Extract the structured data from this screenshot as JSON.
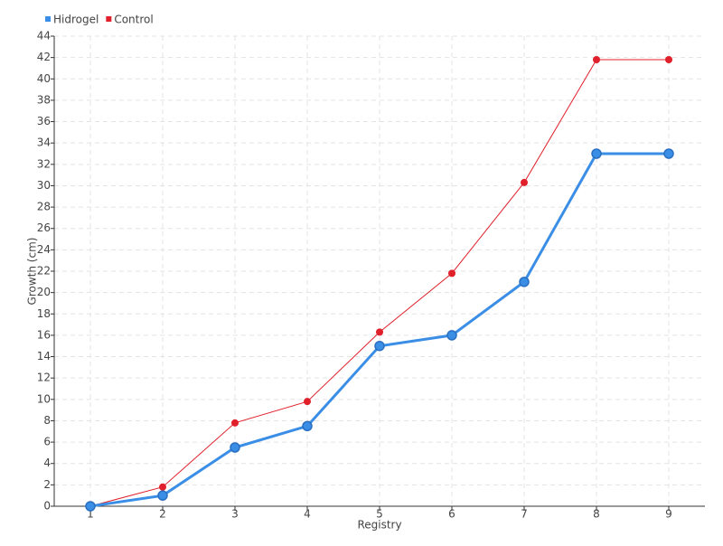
{
  "chart_data": {
    "type": "line",
    "x_label": "Registry",
    "y_label": "Growth (cm)",
    "categories": [
      "1",
      "2",
      "3",
      "4",
      "5",
      "6",
      "7",
      "8",
      "9"
    ],
    "series": [
      {
        "name": "Hidrogel",
        "color": "#3a8ee6",
        "values": [
          0,
          1,
          5.5,
          7.5,
          15,
          16,
          21,
          33,
          33
        ]
      },
      {
        "name": "Control",
        "color": "#e0202a",
        "values": [
          0,
          1.8,
          7.8,
          9.8,
          16.3,
          21.8,
          30.3,
          41.8,
          41.8
        ]
      }
    ],
    "ylim": [
      0,
      44
    ],
    "yticks": [
      0,
      2,
      4,
      6,
      8,
      10,
      12,
      14,
      16,
      18,
      20,
      22,
      24,
      26,
      28,
      30,
      32,
      34,
      36,
      38,
      40,
      42,
      44
    ],
    "grid": true,
    "legend": "top-left"
  }
}
